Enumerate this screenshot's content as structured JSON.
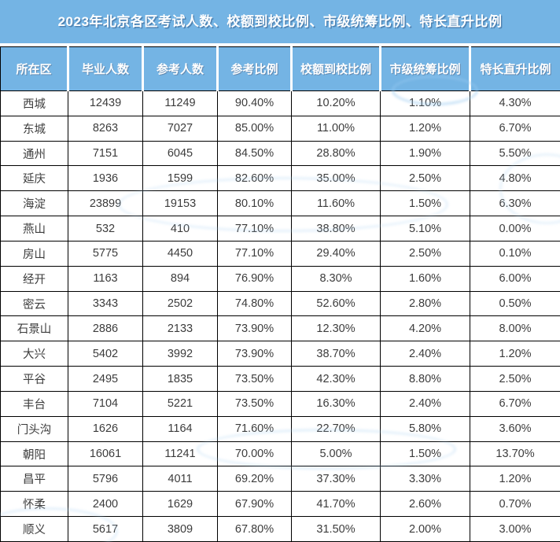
{
  "title": "2023年北京各区考试人数、校额到校比例、市级统筹比例、特长直升比例",
  "colors": {
    "header_bg": "#74B4E4",
    "header_text": "#FFFFFF",
    "body_text": "#3C3C3C",
    "grid_border": "#000000",
    "watermark": "#A8CFF0"
  },
  "chart_data": {
    "type": "table",
    "title": "2023年北京各区考试人数、校额到校比例、市级统筹比例、特长直升比例",
    "columns": [
      "所在区",
      "毕业人数",
      "参考人数",
      "参考比例",
      "校额到校比例",
      "市级统筹比例",
      "特长直升比例"
    ],
    "rows": [
      [
        "西城",
        "12439",
        "11249",
        "90.40%",
        "10.20%",
        "1.10%",
        "4.30%"
      ],
      [
        "东城",
        "8263",
        "7027",
        "85.00%",
        "11.00%",
        "1.20%",
        "6.70%"
      ],
      [
        "通州",
        "7151",
        "6045",
        "84.50%",
        "28.80%",
        "1.90%",
        "5.50%"
      ],
      [
        "延庆",
        "1936",
        "1599",
        "82.60%",
        "35.00%",
        "2.50%",
        "4.80%"
      ],
      [
        "海淀",
        "23899",
        "19153",
        "80.10%",
        "11.60%",
        "1.50%",
        "6.30%"
      ],
      [
        "燕山",
        "532",
        "410",
        "77.10%",
        "38.80%",
        "5.10%",
        "0.00%"
      ],
      [
        "房山",
        "5775",
        "4450",
        "77.10%",
        "29.40%",
        "2.50%",
        "0.10%"
      ],
      [
        "经开",
        "1163",
        "894",
        "76.90%",
        "8.30%",
        "1.60%",
        "6.00%"
      ],
      [
        "密云",
        "3343",
        "2502",
        "74.80%",
        "52.60%",
        "2.80%",
        "0.50%"
      ],
      [
        "石景山",
        "2886",
        "2133",
        "73.90%",
        "12.30%",
        "4.20%",
        "8.00%"
      ],
      [
        "大兴",
        "5402",
        "3992",
        "73.90%",
        "38.70%",
        "2.40%",
        "1.20%"
      ],
      [
        "平谷",
        "2495",
        "1835",
        "73.50%",
        "42.30%",
        "8.80%",
        "2.50%"
      ],
      [
        "丰台",
        "7104",
        "5221",
        "73.50%",
        "16.30%",
        "2.40%",
        "6.70%"
      ],
      [
        "门头沟",
        "1626",
        "1164",
        "71.60%",
        "22.70%",
        "5.80%",
        "3.60%"
      ],
      [
        "朝阳",
        "16061",
        "11241",
        "70.00%",
        "5.00%",
        "1.50%",
        "13.70%"
      ],
      [
        "昌平",
        "5796",
        "4011",
        "69.20%",
        "37.30%",
        "3.30%",
        "1.20%"
      ],
      [
        "怀柔",
        "2400",
        "1629",
        "67.90%",
        "41.70%",
        "2.60%",
        "0.70%"
      ],
      [
        "顺义",
        "5617",
        "3809",
        "67.80%",
        "31.50%",
        "2.00%",
        "3.00%"
      ]
    ]
  }
}
